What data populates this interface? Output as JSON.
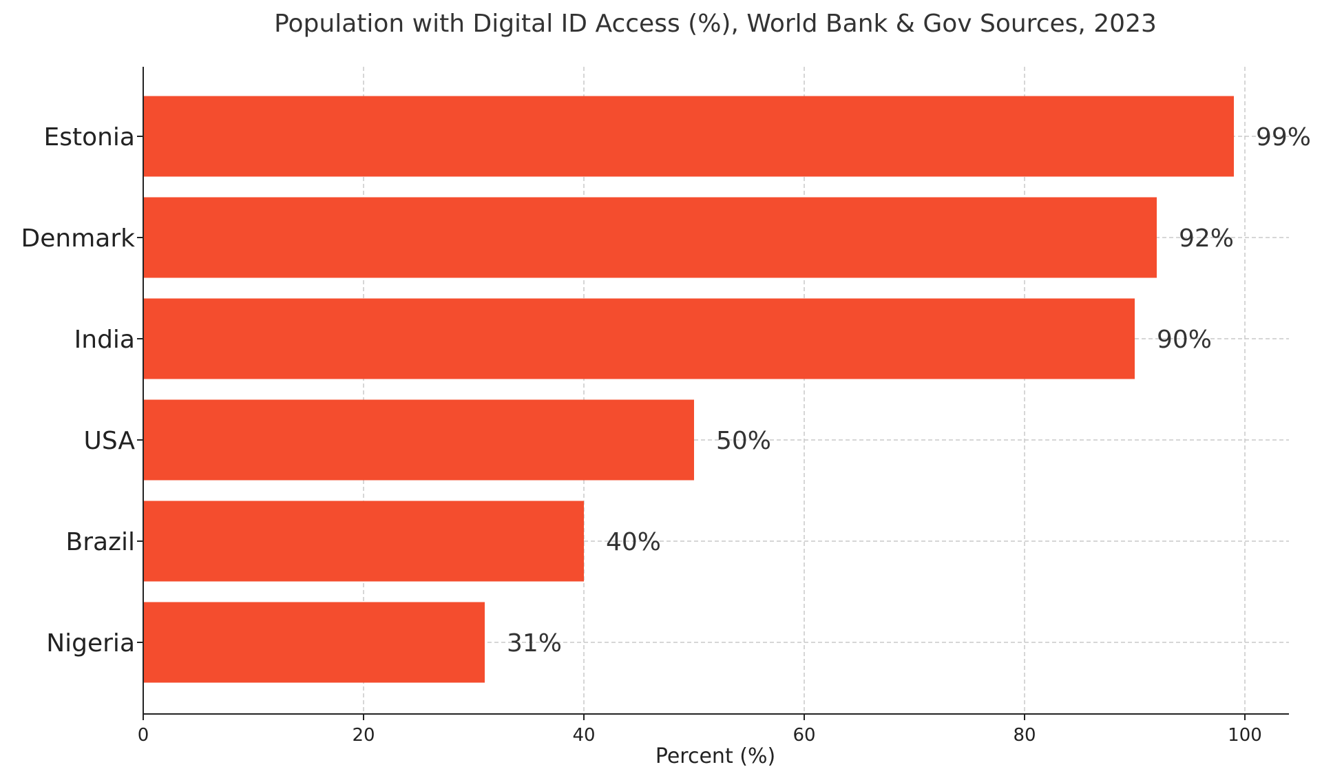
{
  "chart_data": {
    "type": "bar",
    "orientation": "horizontal",
    "title": "Population with Digital ID Access (%), World Bank & Gov Sources, 2023",
    "xlabel": "Percent (%)",
    "ylabel": "",
    "xlim": [
      0,
      104
    ],
    "xticks": [
      0,
      20,
      40,
      60,
      80,
      100
    ],
    "xtick_labels": [
      "0",
      "20",
      "40",
      "60",
      "80",
      "100"
    ],
    "grid": true,
    "categories": [
      "Estonia",
      "Denmark",
      "India",
      "USA",
      "Brazil",
      "Nigeria"
    ],
    "values": [
      99,
      92,
      90,
      50,
      40,
      31
    ],
    "value_labels": [
      "99%",
      "92%",
      "90%",
      "50%",
      "40%",
      "31%"
    ],
    "bar_color": "#f44d2e"
  }
}
